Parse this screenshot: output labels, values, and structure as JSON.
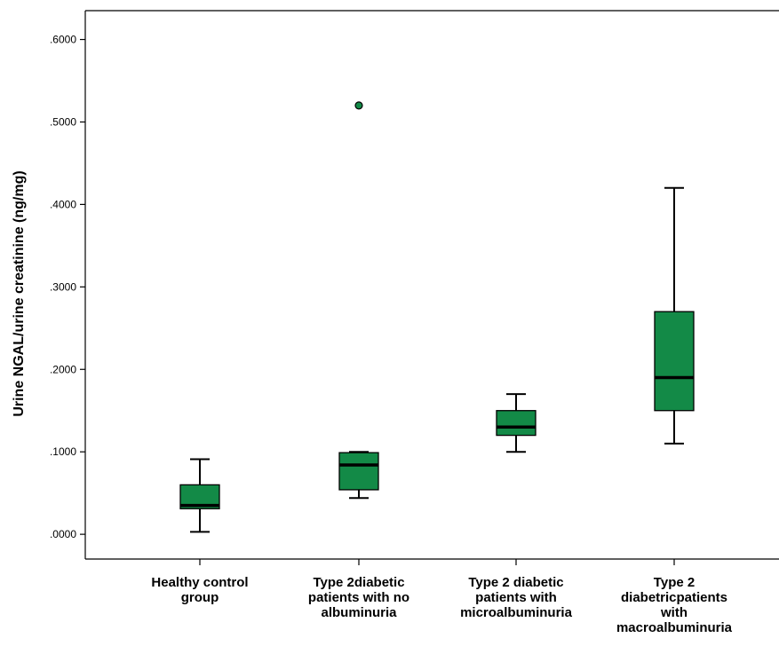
{
  "chart_data": {
    "type": "boxplot",
    "title": "",
    "xlabel": "",
    "ylabel": "Urine NGAL/urine creatinine  (ng/mg)",
    "ylim": [
      -0.03,
      0.635
    ],
    "y_ticks": [
      ".0000",
      ".1000",
      ".2000",
      ".3000",
      ".4000",
      ".5000",
      ".6000"
    ],
    "y_tick_values": [
      0.0,
      0.1,
      0.2,
      0.3,
      0.4,
      0.5,
      0.6
    ],
    "grid": false,
    "legend": "none",
    "box_color": "#138a47",
    "categories": [
      {
        "lines": [
          "Healthy control",
          "group"
        ]
      },
      {
        "lines": [
          "Type 2diabetic",
          "patients with no",
          "albuminuria"
        ]
      },
      {
        "lines": [
          "Type 2 diabetic",
          "patients with",
          "microalbuminuria"
        ]
      },
      {
        "lines": [
          "Type 2",
          "diabetricpatients",
          "with",
          "macroalbuminuria"
        ]
      }
    ],
    "boxes": [
      {
        "min": 0.003,
        "q1": 0.031,
        "median": 0.035,
        "q3": 0.06,
        "max": 0.091,
        "outliers": []
      },
      {
        "min": 0.044,
        "q1": 0.054,
        "median": 0.084,
        "q3": 0.099,
        "max": 0.1,
        "outliers": [
          0.52
        ]
      },
      {
        "min": 0.1,
        "q1": 0.12,
        "median": 0.13,
        "q3": 0.15,
        "max": 0.17,
        "outliers": []
      },
      {
        "min": 0.11,
        "q1": 0.15,
        "median": 0.19,
        "q3": 0.27,
        "max": 0.42,
        "outliers": []
      }
    ]
  }
}
